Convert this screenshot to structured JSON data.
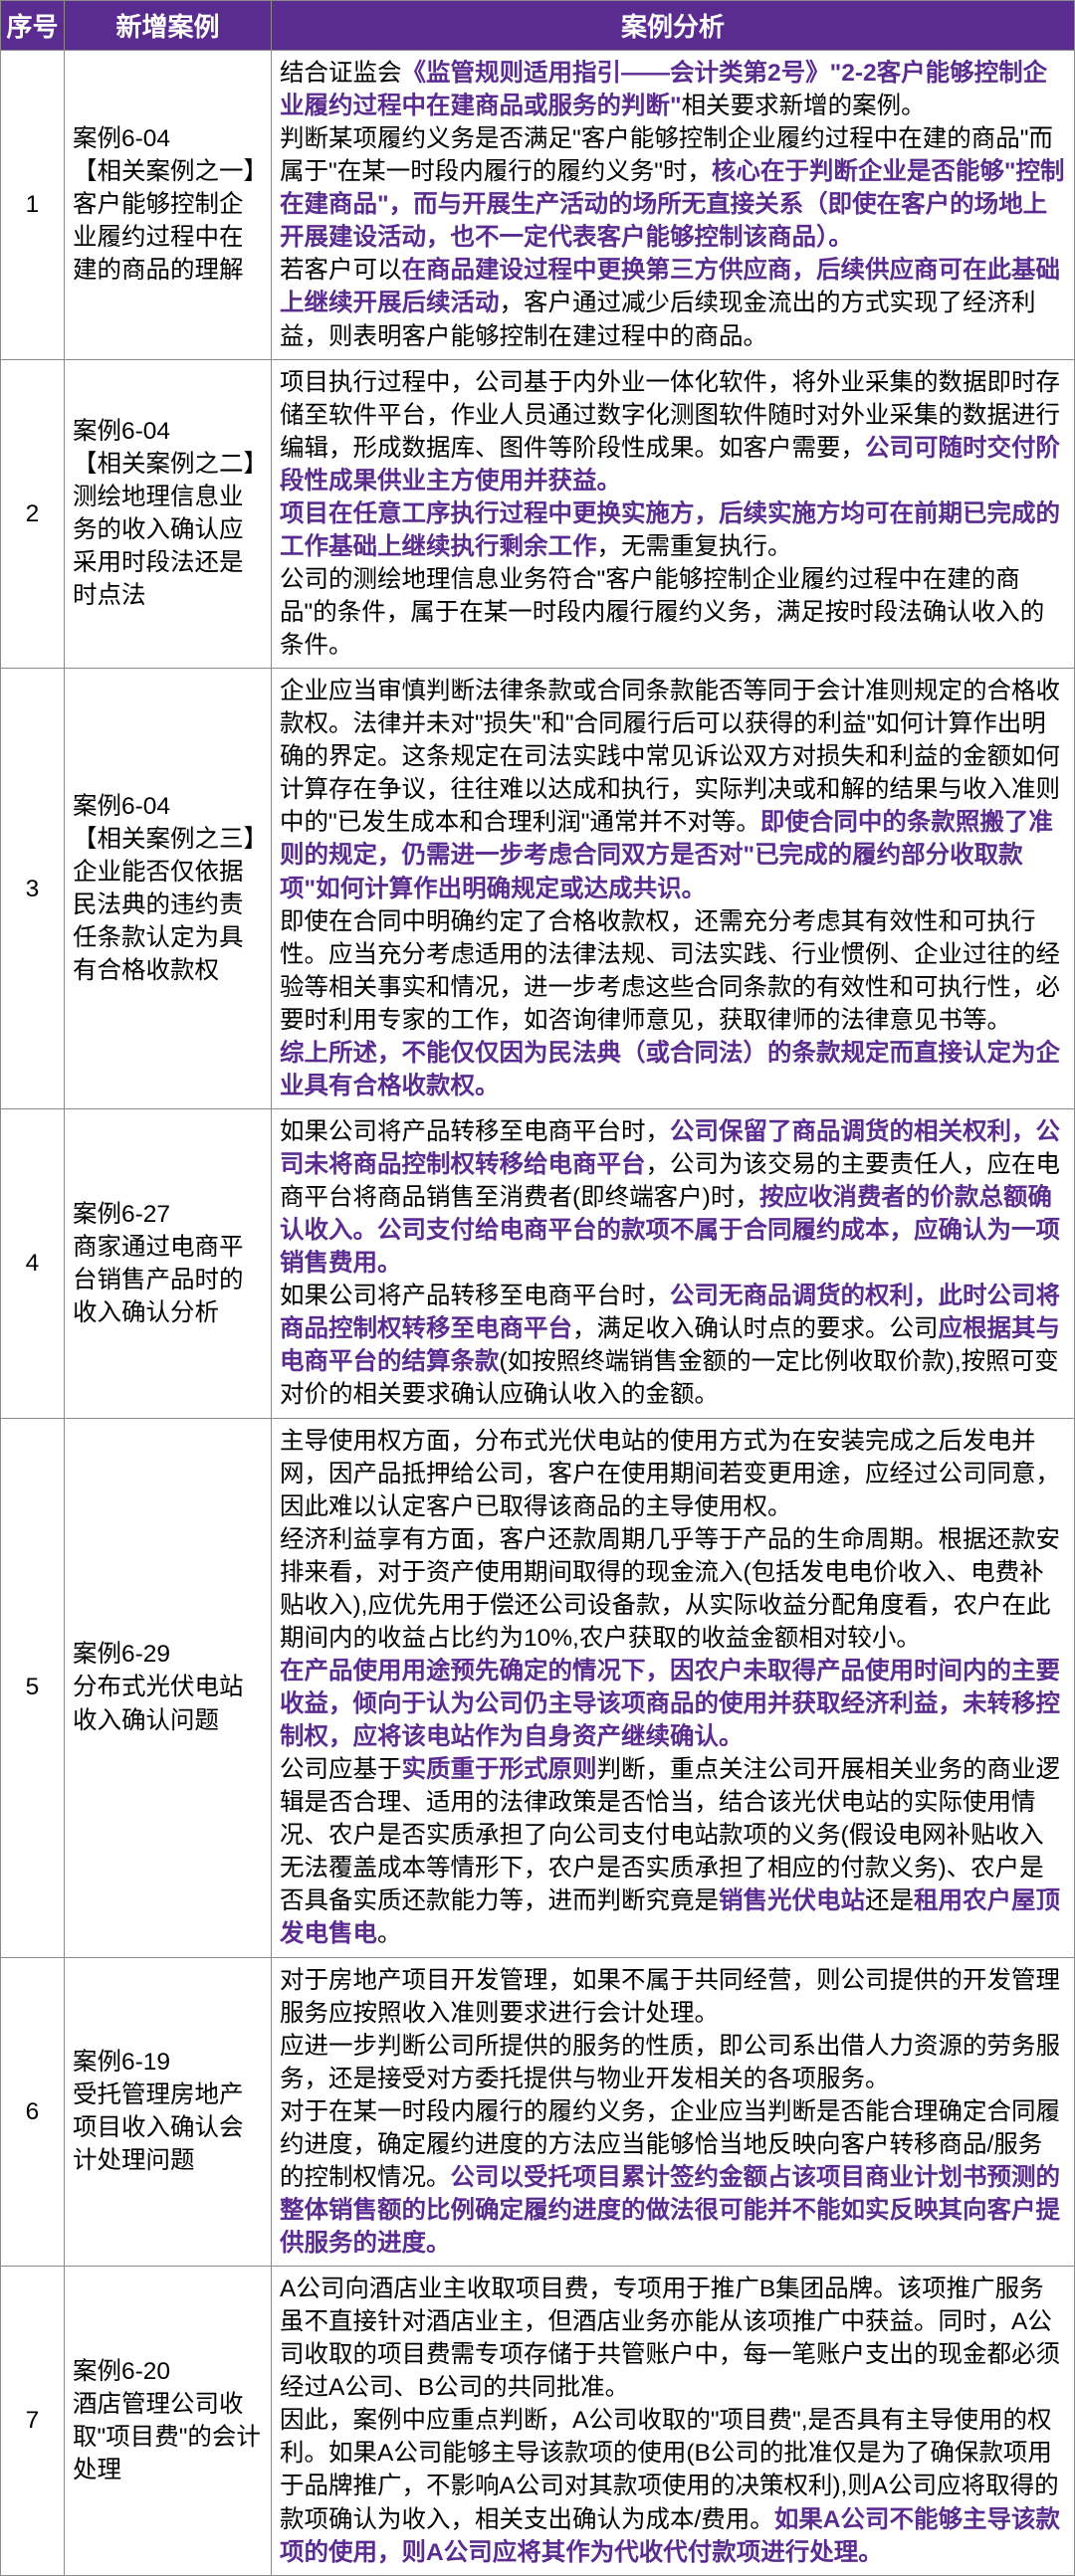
{
  "headers": {
    "seq": "序号",
    "case": "新增案例",
    "analysis": "案例分析"
  },
  "rows": [
    {
      "seq": "1",
      "case": "案例6-04\n【相关案例之一】客户能够控制企业履约过程中在建的商品的理解",
      "analysis": [
        {
          "t": "结合证监会",
          "h": false
        },
        {
          "t": "《监管规则适用指引——会计类第2号》\"2-2客户能够控制企业履约过程中在建商品或服务的判断\"",
          "h": true
        },
        {
          "t": "相关要求新增的案例。\n判断某项履约义务是否满足\"客户能够控制企业履约过程中在建的商品\"而属于\"在某一时段内履行的履约义务\"时，",
          "h": false
        },
        {
          "t": "核心在于判断企业是否能够\"控制在建商品\"，而与开展生产活动的场所无直接关系（即使在客户的场地上开展建设活动，也不一定代表客户能够控制该商品）。",
          "h": true
        },
        {
          "t": "\n若客户可以",
          "h": false
        },
        {
          "t": "在商品建设过程中更换第三方供应商，后续供应商可在此基础上继续开展后续活动",
          "h": true
        },
        {
          "t": "，客户通过减少后续现金流出的方式实现了经济利益，则表明客户能够控制在建过程中的商品。",
          "h": false
        }
      ]
    },
    {
      "seq": "2",
      "case": "案例6-04\n【相关案例之二】测绘地理信息业务的收入确认应采用时段法还是时点法",
      "analysis": [
        {
          "t": "项目执行过程中，公司基于内外业一体化软件，将外业采集的数据即时存储至软件平台，作业人员通过数字化测图软件随时对外业采集的数据进行编辑，形成数据库、图件等阶段性成果。如客户需要，",
          "h": false
        },
        {
          "t": "公司可随时交付阶段性成果供业主方使用并获益。\n项目在任意工序执行过程中更换实施方，后续实施方均可在前期已完成的工作基础上继续执行剩余工作",
          "h": true
        },
        {
          "t": "，无需重复执行。\n公司的测绘地理信息业务符合\"客户能够控制企业履约过程中在建的商品\"的条件，属于在某一时段内履行履约义务，满足按时段法确认收入的条件。",
          "h": false
        }
      ]
    },
    {
      "seq": "3",
      "case": "案例6-04\n【相关案例之三】企业能否仅依据民法典的违约责任条款认定为具有合格收款权",
      "analysis": [
        {
          "t": "企业应当审慎判断法律条款或合同条款能否等同于会计准则规定的合格收款权。法律并未对\"损失\"和\"合同履行后可以获得的利益\"如何计算作出明确的界定。这条规定在司法实践中常见诉讼双方对损失和利益的金额如何计算存在争议，往往难以达成和执行，实际判决或和解的结果与收入准则中的\"已发生成本和合理利润\"通常并不对等。",
          "h": false
        },
        {
          "t": "即使合同中的条款照搬了准则的规定，仍需进一步考虑合同双方是否对\"已完成的履约部分收取款项\"如何计算作出明确规定或达成共识。",
          "h": true
        },
        {
          "t": "\n即使在合同中明确约定了合格收款权，还需充分考虑其有效性和可执行性。应当充分考虑适用的法律法规、司法实践、行业惯例、企业过往的经验等相关事实和情况，进一步考虑这些合同条款的有效性和可执行性，必要时利用专家的工作，如咨询律师意见，获取律师的法律意见书等。\n",
          "h": false
        },
        {
          "t": "综上所述，不能仅仅因为民法典（或合同法）的条款规定而直接认定为企业具有合格收款权。",
          "h": true
        }
      ]
    },
    {
      "seq": "4",
      "case": "案例6-27\n商家通过电商平台销售产品时的收入确认分析",
      "analysis": [
        {
          "t": "如果公司将产品转移至电商平台时，",
          "h": false
        },
        {
          "t": "公司保留了商品调货的相关权利，公司未将商品控制权转移给电商平台",
          "h": true
        },
        {
          "t": "，公司为该交易的主要责任人，应在电商平台将商品销售至消费者(即终端客户)时，",
          "h": false
        },
        {
          "t": "按应收消费者的价款总额确认收入。公司支付给电商平台的款项不属于合同履约成本，应确认为一项销售费用。",
          "h": true
        },
        {
          "t": "\n如果公司将产品转移至电商平台时，",
          "h": false
        },
        {
          "t": "公司无商品调货的权利，此时公司将商品控制权转移至电商平台",
          "h": true
        },
        {
          "t": "，满足收入确认时点的要求。公司",
          "h": false
        },
        {
          "t": "应根据其与电商平台的结算条款",
          "h": true
        },
        {
          "t": "(如按照终端销售金额的一定比例收取价款),按照可变对价的相关要求确认应确认收入的金额。",
          "h": false
        }
      ]
    },
    {
      "seq": "5",
      "case": "案例6-29\n分布式光伏电站收入确认问题",
      "analysis": [
        {
          "t": "主导使用权方面，分布式光伏电站的使用方式为在安装完成之后发电并网，因产品抵押给公司，客户在使用期间若变更用途，应经过公司同意，因此难以认定客户已取得该商品的主导使用权。\n经济利益享有方面，客户还款周期几乎等于产品的生命周期。根据还款安排来看，对于资产使用期间取得的现金流入(包括发电电价收入、电费补贴收入),应优先用于偿还公司设备款，从实际收益分配角度看，农户在此期间内的收益占比约为10%,农户获取的收益金额相对较小。\n",
          "h": false
        },
        {
          "t": "在产品使用用途预先确定的情况下，因农户未取得产品使用时间内的主要收益，倾向于认为公司仍主导该项商品的使用并获取经济利益，未转移控制权，应将该电站作为自身资产继续确认。",
          "h": true
        },
        {
          "t": "\n公司应基于",
          "h": false
        },
        {
          "t": "实质重于形式原则",
          "h": true
        },
        {
          "t": "判断，重点关注公司开展相关业务的商业逻辑是否合理、适用的法律政策是否恰当，结合该光伏电站的实际使用情况、农户是否实质承担了向公司支付电站款项的义务(假设电网补贴收入无法覆盖成本等情形下，农户是否实质承担了相应的付款义务)、农户是否具备实质还款能力等，进而判断究竟是",
          "h": false
        },
        {
          "t": "销售光伏电站",
          "h": true
        },
        {
          "t": "还是",
          "h": false
        },
        {
          "t": "租用农户屋顶发电售电",
          "h": true
        },
        {
          "t": "。",
          "h": false
        }
      ]
    },
    {
      "seq": "6",
      "case": "案例6-19\n受托管理房地产项目收入确认会计处理问题",
      "analysis": [
        {
          "t": "对于房地产项目开发管理，如果不属于共同经营，则公司提供的开发管理服务应按照收入准则要求进行会计处理。\n应进一步判断公司所提供的服务的性质，即公司系出借人力资源的劳务服务，还是接受对方委托提供与物业开发相关的各项服务。\n对于在某一时段内履行的履约义务，企业应当判断是否能合理确定合同履约进度，确定履约进度的方法应当能够恰当地反映向客户转移商品/服务的控制权情况。",
          "h": false
        },
        {
          "t": "公司以受托项目累计签约金额占该项目商业计划书预测的整体销售额的比例确定履约进度的做法很可能并不能如实反映其向客户提供服务的进度。",
          "h": true
        }
      ]
    },
    {
      "seq": "7",
      "case": "案例6-20\n酒店管理公司收取\"项目费\"的会计处理",
      "analysis": [
        {
          "t": "A公司向酒店业主收取项目费，专项用于推广B集团品牌。该项推广服务虽不直接针对酒店业主，但酒店业务亦能从该项推广中获益。同时，A公司收取的项目费需专项存储于共管账户中，每一笔账户支出的现金都必须经过A公司、B公司的共同批准。\n因此，案例中应重点判断，A公司收取的\"项目费\",是否具有主导使用的权利。如果A公司能够主导该款项的使用(B公司的批准仅是为了确保款项用于品牌推广，不影响A公司对其款项使用的决策权利),则A公司应将取得的款项确认为收入，相关支出确认为成本/费用。",
          "h": false
        },
        {
          "t": "如果A公司不能够主导该款项的使用，则A公司应将其作为代收代付款项进行处理。",
          "h": true
        }
      ]
    }
  ]
}
